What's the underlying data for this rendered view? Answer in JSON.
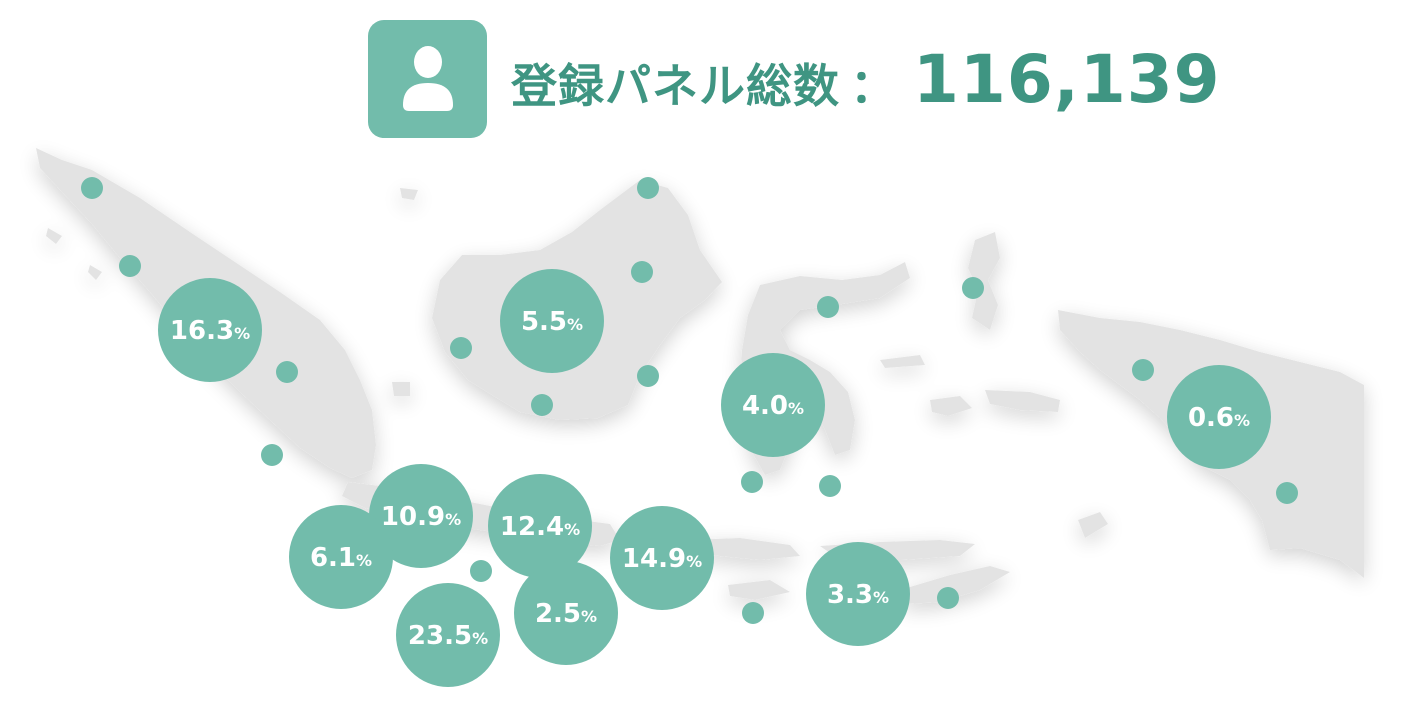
{
  "header": {
    "icon": "user-icon",
    "label": "登録パネル総数",
    "colon": "：",
    "count": "116,139"
  },
  "colors": {
    "accent": "#72bcab",
    "title": "#3f9582",
    "land": "#e3e3e3"
  },
  "regions": [
    {
      "value": "16.3",
      "unit": "%"
    },
    {
      "value": "5.5",
      "unit": "%"
    },
    {
      "value": "4.0",
      "unit": "%"
    },
    {
      "value": "0.6",
      "unit": "%"
    },
    {
      "value": "10.9",
      "unit": "%"
    },
    {
      "value": "12.4",
      "unit": "%"
    },
    {
      "value": "6.1",
      "unit": "%"
    },
    {
      "value": "14.9",
      "unit": "%"
    },
    {
      "value": "23.5",
      "unit": "%"
    },
    {
      "value": "2.5",
      "unit": "%"
    },
    {
      "value": "3.3",
      "unit": "%"
    }
  ]
}
